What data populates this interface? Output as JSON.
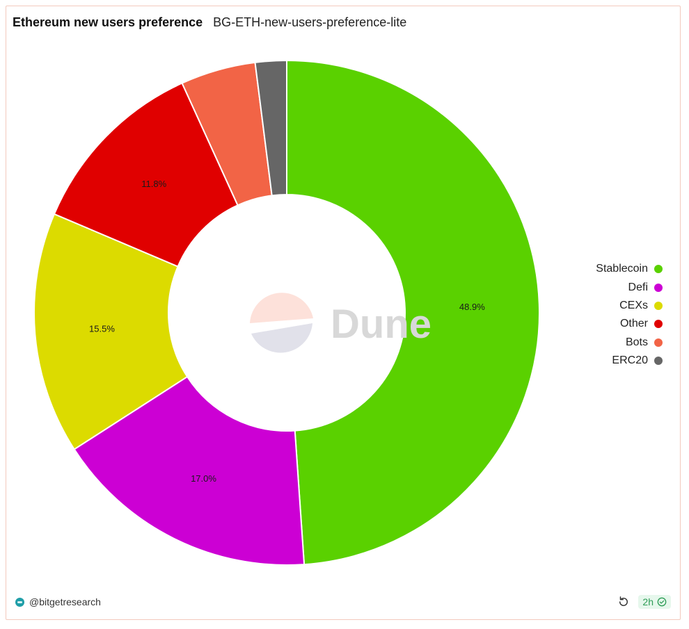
{
  "header": {
    "title": "Ethereum new users preference",
    "subtitle": "BG-ETH-new-users-preference-lite"
  },
  "watermark": {
    "text": "Dune"
  },
  "footer": {
    "author": "@bitgetresearch",
    "age": "2h",
    "icons": {
      "refresh": "refresh-icon",
      "status": "check-circle-icon",
      "avatar": "avatar-icon"
    }
  },
  "chart_data": {
    "type": "pie",
    "donut": true,
    "slices": [
      {
        "label": "Stablecoin",
        "value": 48.9,
        "color": "#5ad100",
        "data_label": "48.9%"
      },
      {
        "label": "Defi",
        "value": 17.0,
        "color": "#cc00d4",
        "data_label": "17.0%"
      },
      {
        "label": "CEXs",
        "value": 15.5,
        "color": "#dcdb00",
        "data_label": "15.5%"
      },
      {
        "label": "Other",
        "value": 11.8,
        "color": "#e00000",
        "data_label": "11.8%"
      },
      {
        "label": "Bots",
        "value": 4.8,
        "color": "#f26446",
        "data_label": ""
      },
      {
        "label": "ERC20",
        "value": 2.0,
        "color": "#666666",
        "data_label": ""
      }
    ],
    "legend_position": "right"
  }
}
